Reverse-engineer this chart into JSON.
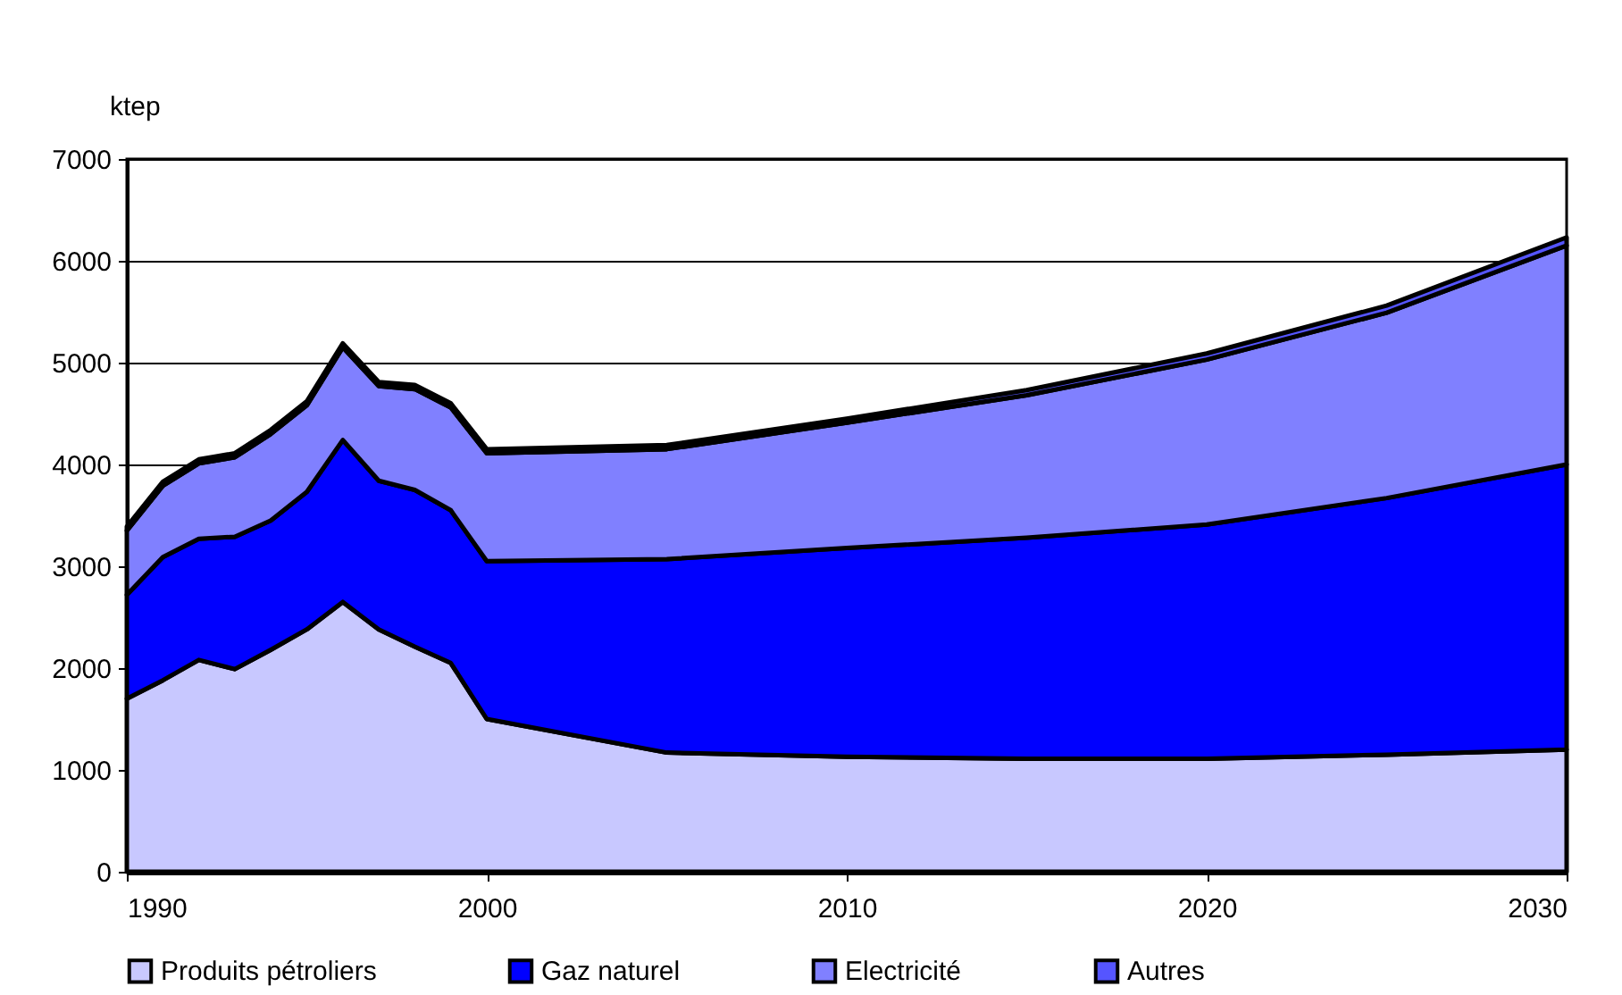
{
  "chart_data": {
    "type": "area",
    "stacked": true,
    "ylabel": "ktep",
    "x": [
      1990,
      1991,
      1992,
      1993,
      1994,
      1995,
      1996,
      1997,
      1998,
      1999,
      2000,
      2005,
      2010,
      2015,
      2020,
      2025,
      2030
    ],
    "series": [
      {
        "name": "Produits pétroliers",
        "color": "#c8c8ff",
        "values": [
          1700,
          1880,
          2080,
          1990,
          2180,
          2380,
          2650,
          2380,
          2210,
          2050,
          1500,
          1170,
          1130,
          1110,
          1110,
          1150,
          1200
        ]
      },
      {
        "name": "Gaz naturel",
        "color": "#0000ff",
        "values": [
          1020,
          1210,
          1190,
          1300,
          1270,
          1350,
          1590,
          1460,
          1540,
          1500,
          1550,
          1900,
          2050,
          2170,
          2300,
          2520,
          2800
        ]
      },
      {
        "name": "Electricité",
        "color": "#8080ff",
        "values": [
          630,
          700,
          740,
          780,
          850,
          850,
          910,
          930,
          990,
          1010,
          1060,
          1080,
          1230,
          1400,
          1620,
          1820,
          2150
        ]
      },
      {
        "name": "Autres",
        "color": "#5555ff",
        "values": [
          40,
          40,
          40,
          40,
          40,
          40,
          40,
          40,
          40,
          40,
          40,
          40,
          40,
          50,
          60,
          70,
          80
        ]
      }
    ],
    "xlim": [
      1990,
      2030
    ],
    "xticks": [
      1990,
      2000,
      2010,
      2020,
      2030
    ],
    "ylim": [
      0,
      7000
    ],
    "yticks": [
      0,
      1000,
      2000,
      3000,
      4000,
      5000,
      6000,
      7000
    ],
    "grid": "y",
    "legend": "bottom"
  }
}
